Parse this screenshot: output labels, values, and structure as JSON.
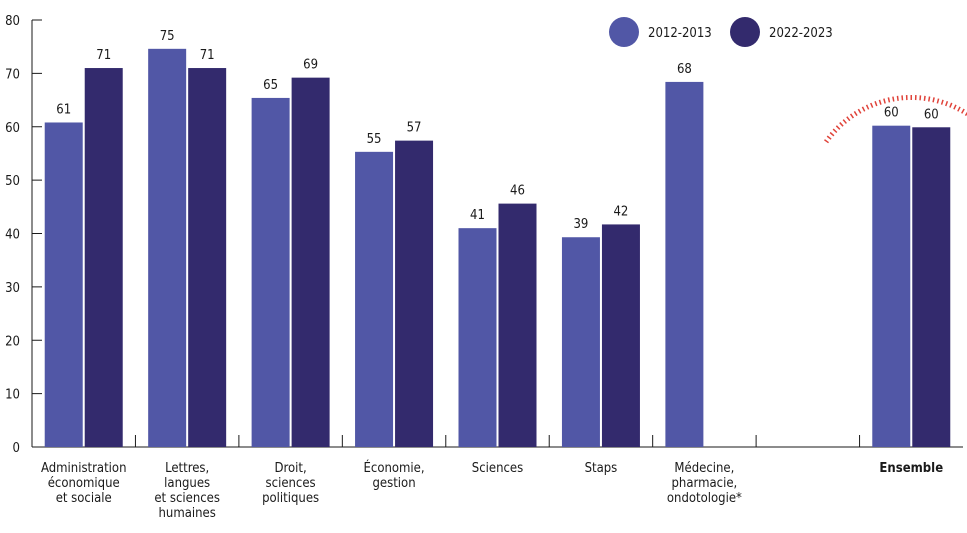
{
  "chart_data": {
    "type": "bar",
    "title": "",
    "xlabel": "",
    "ylabel": "",
    "ylim": [
      0,
      80
    ],
    "yticks": [
      0,
      10,
      20,
      30,
      40,
      50,
      60,
      70,
      80
    ],
    "grid": false,
    "legend_position": "top-right",
    "categories": [
      {
        "label": "Administration économique et sociale",
        "lines": [
          "Administration",
          "économique",
          "et sociale"
        ],
        "bold": false
      },
      {
        "label": "Lettres, langues et sciences humaines",
        "lines": [
          "Lettres,",
          "langues",
          "et sciences",
          "humaines"
        ],
        "bold": false
      },
      {
        "label": "Droit, sciences politiques",
        "lines": [
          "Droit,",
          "sciences",
          "politiques"
        ],
        "bold": false
      },
      {
        "label": "Économie, gestion",
        "lines": [
          "Économie,",
          "gestion"
        ],
        "bold": false
      },
      {
        "label": "Sciences",
        "lines": [
          "Sciences"
        ],
        "bold": false
      },
      {
        "label": "Staps",
        "lines": [
          "Staps"
        ],
        "bold": false
      },
      {
        "label": "Médecine, pharmacie, ondotologie*",
        "lines": [
          "Médecine,",
          "pharmacie,",
          "ondotologie*"
        ],
        "bold": false
      },
      {
        "label": "",
        "lines": [],
        "bold": false
      },
      {
        "label": "Ensemble",
        "lines": [
          "Ensemble"
        ],
        "bold": true
      }
    ],
    "series": [
      {
        "name": "2012-2013",
        "color": "#5157a6",
        "values": [
          60.8,
          74.6,
          65.4,
          55.3,
          41.0,
          39.3,
          68.4,
          null,
          60.2
        ]
      },
      {
        "name": "2022-2023",
        "color": "#332a6d",
        "values": [
          71.0,
          71.0,
          69.2,
          57.4,
          45.6,
          41.7,
          null,
          null,
          59.9
        ]
      }
    ],
    "data_labels": [
      [
        "61",
        "75",
        "65",
        "55",
        "41",
        "39",
        "68",
        "",
        "60"
      ],
      [
        "71",
        "71",
        "69",
        "57",
        "46",
        "42",
        "",
        "",
        "60"
      ]
    ],
    "highlight": {
      "category_index": 8,
      "color": "#e0433a"
    }
  }
}
